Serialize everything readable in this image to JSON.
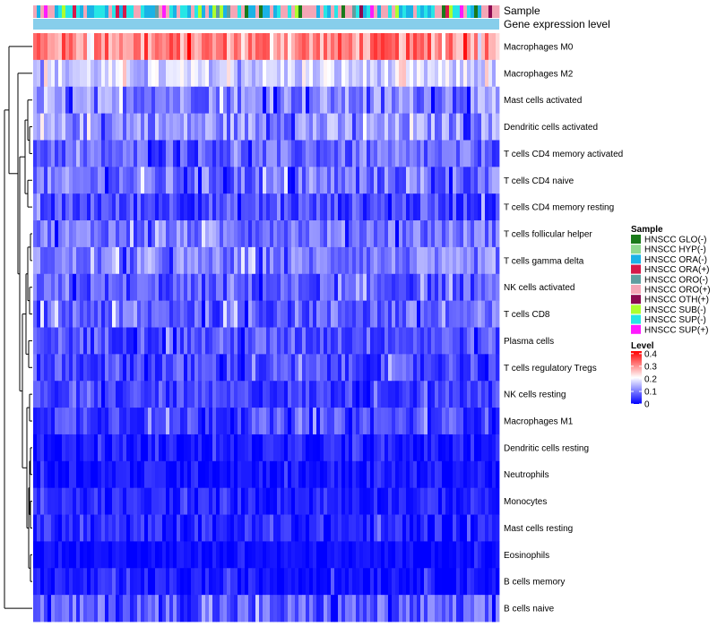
{
  "chart_data": {
    "type": "heatmap",
    "title": "",
    "annotation_labels": [
      "Sample",
      "Gene expression level"
    ],
    "rows": [
      {
        "label": "Macrophages M0",
        "mean": 0.31,
        "spread": 0.07
      },
      {
        "label": "Macrophages M2",
        "mean": 0.17,
        "spread": 0.05
      },
      {
        "label": "Mast cells activated",
        "mean": 0.11,
        "spread": 0.06
      },
      {
        "label": "Dendritic cells activated",
        "mean": 0.12,
        "spread": 0.06
      },
      {
        "label": "T cells CD4 memory activated",
        "mean": 0.08,
        "spread": 0.05
      },
      {
        "label": "T cells CD4 naive",
        "mean": 0.09,
        "spread": 0.06
      },
      {
        "label": "T cells CD4 memory resting",
        "mean": 0.06,
        "spread": 0.05
      },
      {
        "label": "T cells follicular helper",
        "mean": 0.1,
        "spread": 0.05
      },
      {
        "label": "T cells gamma delta",
        "mean": 0.1,
        "spread": 0.05
      },
      {
        "label": "NK cells activated",
        "mean": 0.07,
        "spread": 0.05
      },
      {
        "label": "T cells CD8",
        "mean": 0.08,
        "spread": 0.06
      },
      {
        "label": "Plasma cells",
        "mean": 0.07,
        "spread": 0.05
      },
      {
        "label": "T cells regulatory  Tregs",
        "mean": 0.06,
        "spread": 0.05
      },
      {
        "label": "NK cells resting",
        "mean": 0.05,
        "spread": 0.04
      },
      {
        "label": "Macrophages M1",
        "mean": 0.06,
        "spread": 0.05
      },
      {
        "label": "Dendritic cells resting",
        "mean": 0.02,
        "spread": 0.03
      },
      {
        "label": "Neutrophils",
        "mean": 0.02,
        "spread": 0.03
      },
      {
        "label": "Monocytes",
        "mean": 0.03,
        "spread": 0.03
      },
      {
        "label": "Mast cells resting",
        "mean": 0.03,
        "spread": 0.04
      },
      {
        "label": "Eosinophils",
        "mean": 0.01,
        "spread": 0.02
      },
      {
        "label": "B cells memory",
        "mean": 0.02,
        "spread": 0.03
      },
      {
        "label": "B cells naive",
        "mean": 0.07,
        "spread": 0.06
      }
    ],
    "n_samples": 130,
    "sample_legend": {
      "title": "Sample",
      "entries": [
        {
          "label": "HNSCC GLO(-)",
          "color": "#1a7a1a"
        },
        {
          "label": "HNSCC HYP(-)",
          "color": "#8fd98f"
        },
        {
          "label": "HNSCC ORA(-)",
          "color": "#1ab2e6"
        },
        {
          "label": "HNSCC ORA(+)",
          "color": "#d6184a"
        },
        {
          "label": "HNSCC ORO(-)",
          "color": "#5f9ea0"
        },
        {
          "label": "HNSCC ORO(+)",
          "color": "#f4a6b6"
        },
        {
          "label": "HNSCC OTH(+)",
          "color": "#8b0a50"
        },
        {
          "label": "HNSCC SUB(-)",
          "color": "#adff2f"
        },
        {
          "label": "HNSCC SUP(-)",
          "color": "#26e6e6"
        },
        {
          "label": "HNSCC SUP(+)",
          "color": "#ff1aff"
        }
      ]
    },
    "level_legend": {
      "title": "Level",
      "ticks": [
        "0.4",
        "0.3",
        "0.2",
        "0.1",
        "0"
      ],
      "tick_values": [
        0.4,
        0.3,
        0.2,
        0.1,
        0.0
      ],
      "range": [
        0,
        0.42
      ],
      "colors": [
        "#0000ff",
        "#ffffff",
        "#ff0000"
      ]
    },
    "gene_expression_bar_color": "#87ceeb"
  }
}
